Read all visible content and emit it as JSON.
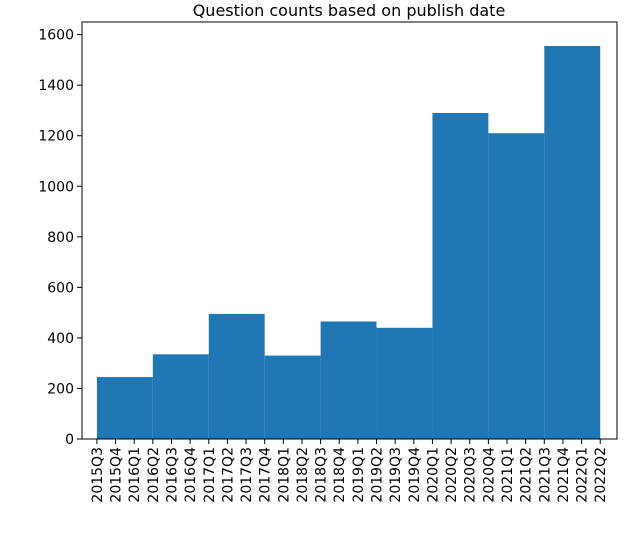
{
  "chart_data": {
    "type": "histogram",
    "title": "Question counts based on publish date",
    "bins": [
      0,
      3,
      6,
      9,
      12,
      15,
      18,
      21,
      24,
      27
    ],
    "values": [
      245,
      335,
      495,
      330,
      465,
      440,
      1290,
      1210,
      1555
    ],
    "color": "#1f77b4",
    "xlim": [
      -0.8,
      27.9
    ],
    "ylim": [
      0,
      1650
    ],
    "xticks": [
      {
        "value": 0,
        "label": "2015Q3"
      },
      {
        "value": 1,
        "label": "2015Q4"
      },
      {
        "value": 2,
        "label": "2016Q1"
      },
      {
        "value": 3,
        "label": "2016Q2"
      },
      {
        "value": 4,
        "label": "2016Q3"
      },
      {
        "value": 5,
        "label": "2016Q4"
      },
      {
        "value": 6,
        "label": "2017Q1"
      },
      {
        "value": 7,
        "label": "2017Q2"
      },
      {
        "value": 8,
        "label": "2017Q3"
      },
      {
        "value": 9,
        "label": "2017Q4"
      },
      {
        "value": 10,
        "label": "2018Q1"
      },
      {
        "value": 11,
        "label": "2018Q2"
      },
      {
        "value": 12,
        "label": "2018Q3"
      },
      {
        "value": 13,
        "label": "2018Q4"
      },
      {
        "value": 14,
        "label": "2019Q1"
      },
      {
        "value": 15,
        "label": "2019Q2"
      },
      {
        "value": 16,
        "label": "2019Q3"
      },
      {
        "value": 17,
        "label": "2019Q4"
      },
      {
        "value": 18,
        "label": "2020Q1"
      },
      {
        "value": 19,
        "label": "2020Q2"
      },
      {
        "value": 20,
        "label": "2020Q3"
      },
      {
        "value": 21,
        "label": "2020Q4"
      },
      {
        "value": 22,
        "label": "2021Q1"
      },
      {
        "value": 23,
        "label": "2021Q2"
      },
      {
        "value": 24,
        "label": "2021Q3"
      },
      {
        "value": 25,
        "label": "2021Q4"
      },
      {
        "value": 26,
        "label": "2022Q1"
      },
      {
        "value": 27,
        "label": "2022Q2"
      }
    ],
    "yticks": [
      0,
      200,
      400,
      600,
      800,
      1000,
      1200,
      1400,
      1600
    ]
  }
}
